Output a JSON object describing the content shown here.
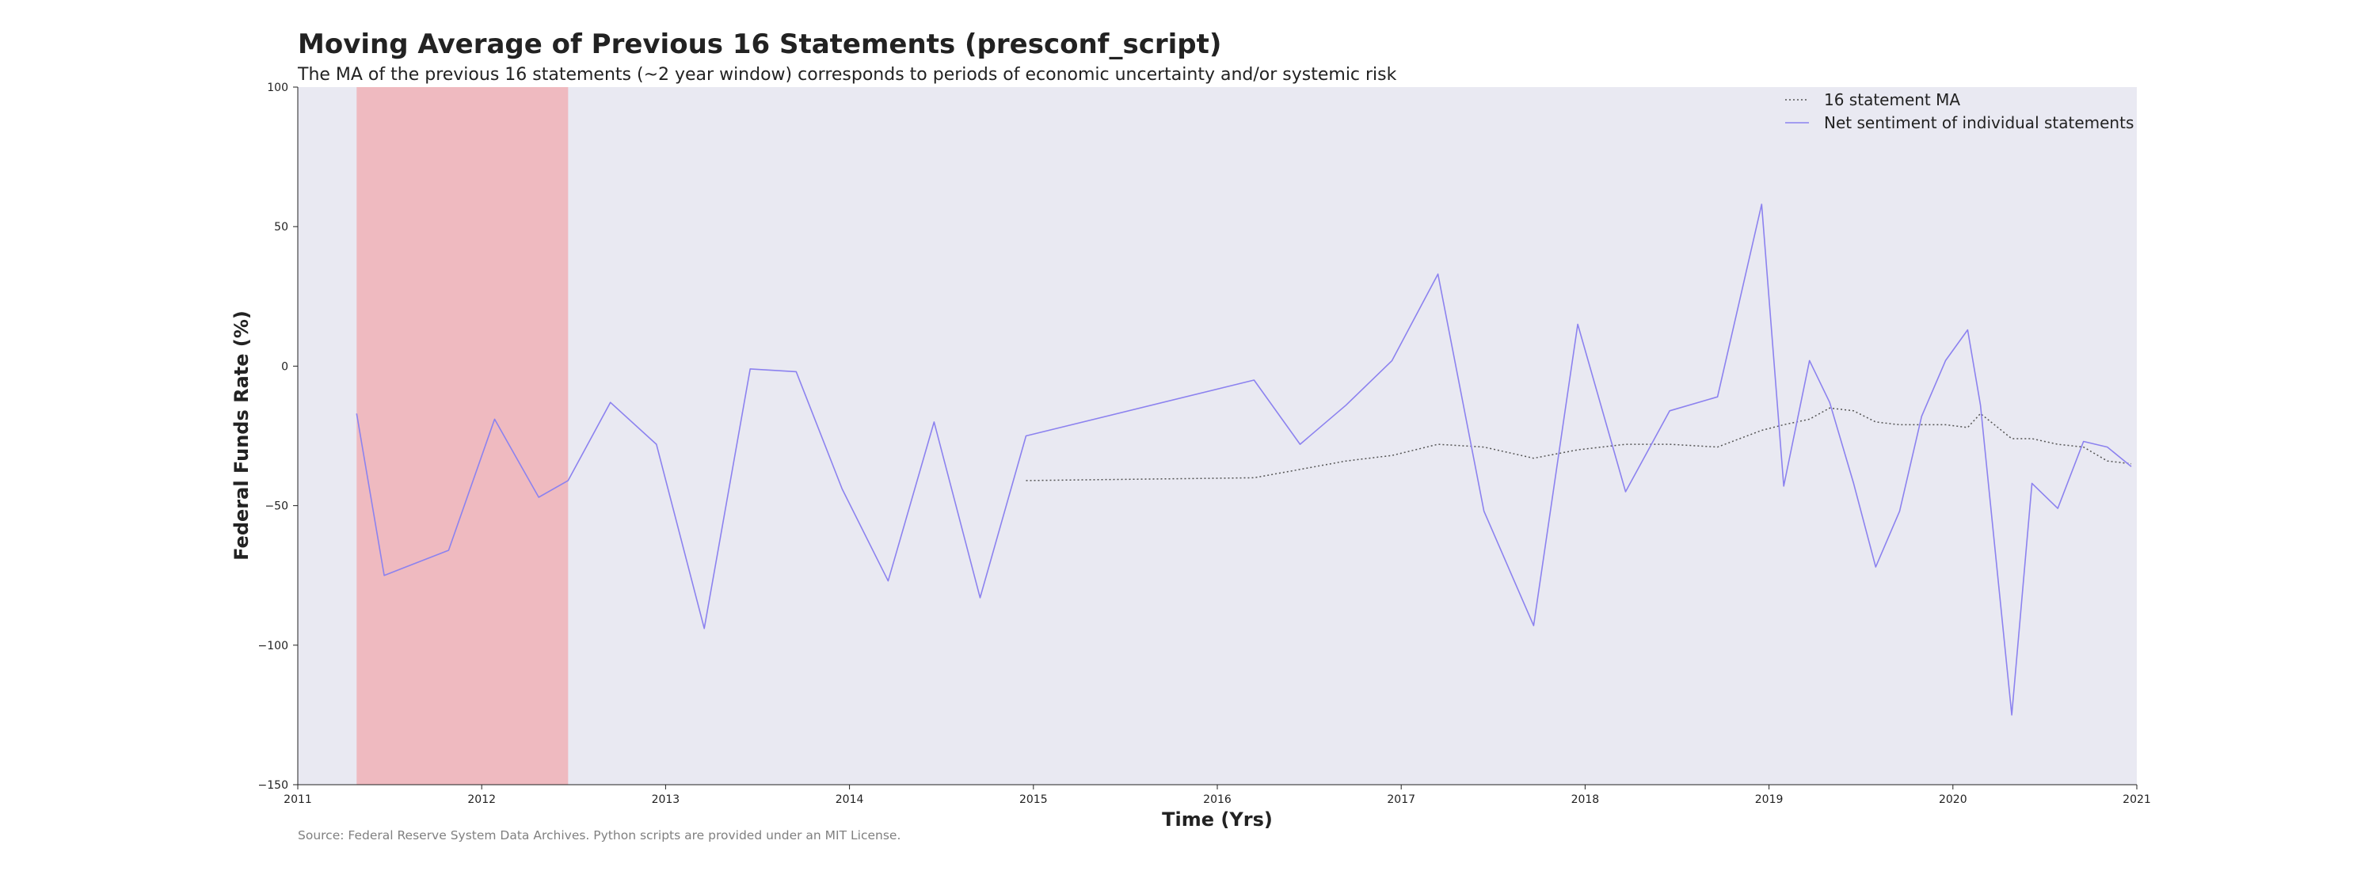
{
  "chart_data": {
    "type": "line",
    "title": "Moving Average of Previous 16 Statements (presconf_script)",
    "subtitle": "The MA of the previous 16 statements (~2 year window) corresponds to periods of economic uncertainty and/or systemic risk",
    "xlabel": "Time (Yrs)",
    "ylabel": "Federal Funds Rate (%)",
    "source": "Source: Federal Reserve System Data Archives. Python scripts are provided under an MIT License.",
    "xlim": [
      2011,
      2021
    ],
    "ylim": [
      -150,
      100
    ],
    "x_ticks": [
      "2011",
      "2012",
      "2013",
      "2014",
      "2015",
      "2016",
      "2017",
      "2018",
      "2019",
      "2020",
      "2021"
    ],
    "y_ticks": [
      "100",
      "50",
      "0",
      "−50",
      "−100",
      "−150"
    ],
    "y_tick_values": [
      100,
      50,
      0,
      -50,
      -100,
      -150
    ],
    "legend_position": "top-right",
    "shaded_regions": [
      {
        "start": 2011.32,
        "end": 2012.47,
        "color": "#efbac0"
      }
    ],
    "series": [
      {
        "name": "16 statement MA",
        "style": "dotted",
        "color": "#555555",
        "x": [
          2014.96,
          2016.2,
          2016.45,
          2016.7,
          2016.95,
          2017.2,
          2017.45,
          2017.72,
          2017.96,
          2018.22,
          2018.46,
          2018.72,
          2018.96,
          2019.08,
          2019.22,
          2019.33,
          2019.46,
          2019.58,
          2019.71,
          2019.83,
          2019.96,
          2020.08,
          2020.15,
          2020.32,
          2020.43,
          2020.57,
          2020.71,
          2020.84,
          2020.97
        ],
        "y": [
          -41,
          -40,
          -37,
          -34,
          -32,
          -28,
          -29,
          -33,
          -30,
          -28,
          -28,
          -29,
          -23,
          -21,
          -19,
          -15,
          -16,
          -20,
          -21,
          -21,
          -21,
          -22,
          -17,
          -26,
          -26,
          -28,
          -29,
          -34,
          -35
        ]
      },
      {
        "name": "Net sentiment of individual statements",
        "style": "solid",
        "color": "#8c82ef",
        "x": [
          2011.32,
          2011.47,
          2011.82,
          2012.07,
          2012.31,
          2012.47,
          2012.7,
          2012.95,
          2013.21,
          2013.46,
          2013.71,
          2013.96,
          2014.21,
          2014.46,
          2014.71,
          2014.96,
          2016.2,
          2016.45,
          2016.7,
          2016.95,
          2017.2,
          2017.45,
          2017.72,
          2017.96,
          2018.22,
          2018.46,
          2018.72,
          2018.96,
          2019.08,
          2019.22,
          2019.33,
          2019.46,
          2019.58,
          2019.71,
          2019.83,
          2019.96,
          2020.08,
          2020.15,
          2020.32,
          2020.43,
          2020.57,
          2020.71,
          2020.84,
          2020.97
        ],
        "y": [
          -17,
          -75,
          -66,
          -19,
          -47,
          -41,
          -13,
          -28,
          -94,
          -1,
          -2,
          -44,
          -77,
          -20,
          -83,
          -25,
          -5,
          -28,
          -14,
          2,
          33,
          -52,
          -93,
          15,
          -45,
          -16,
          -11,
          58,
          -43,
          2,
          -13,
          -42,
          -72,
          -52,
          -18,
          2,
          13,
          -14,
          -125,
          -42,
          -51,
          -27,
          -29,
          -36
        ]
      }
    ]
  }
}
